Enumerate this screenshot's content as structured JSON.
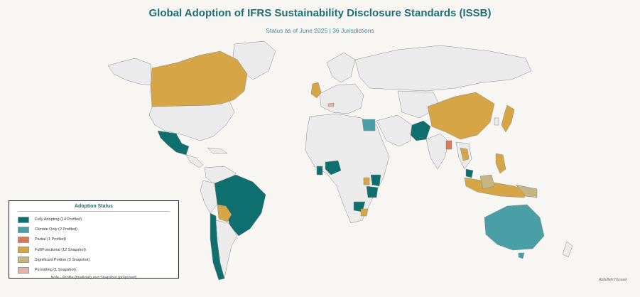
{
  "title": "Global Adoption of IFRS Sustainability Disclosure Standards (ISSB)",
  "subtitle": "Status as of June 2025 | 36 Jurisdictions",
  "legend": {
    "title": "Adoption Status",
    "items": [
      {
        "label": "Fully Adopting (14 Profiled)",
        "color": "#0f6e6e"
      },
      {
        "label": "Climate Only (2 Profiled)",
        "color": "#4a9fa7"
      },
      {
        "label": "Partial (1 Profiled)",
        "color": "#d9785a"
      },
      {
        "label": "Full/Functional (12 Snapshot)",
        "color": "#d6a646"
      },
      {
        "label": "Significant Portion (3 Snapshot)",
        "color": "#c5b583"
      },
      {
        "label": "Permitting (1 Snapshot)",
        "color": "#e6b2a4"
      }
    ],
    "note": "Note - Profile (finalized) and Snapshot (proposed)"
  },
  "author": "Abdullahi Hussein",
  "map_colors": {
    "background": "#f7f6f3",
    "land_default": "#ebebeb",
    "border": "#8a8a8a"
  }
}
